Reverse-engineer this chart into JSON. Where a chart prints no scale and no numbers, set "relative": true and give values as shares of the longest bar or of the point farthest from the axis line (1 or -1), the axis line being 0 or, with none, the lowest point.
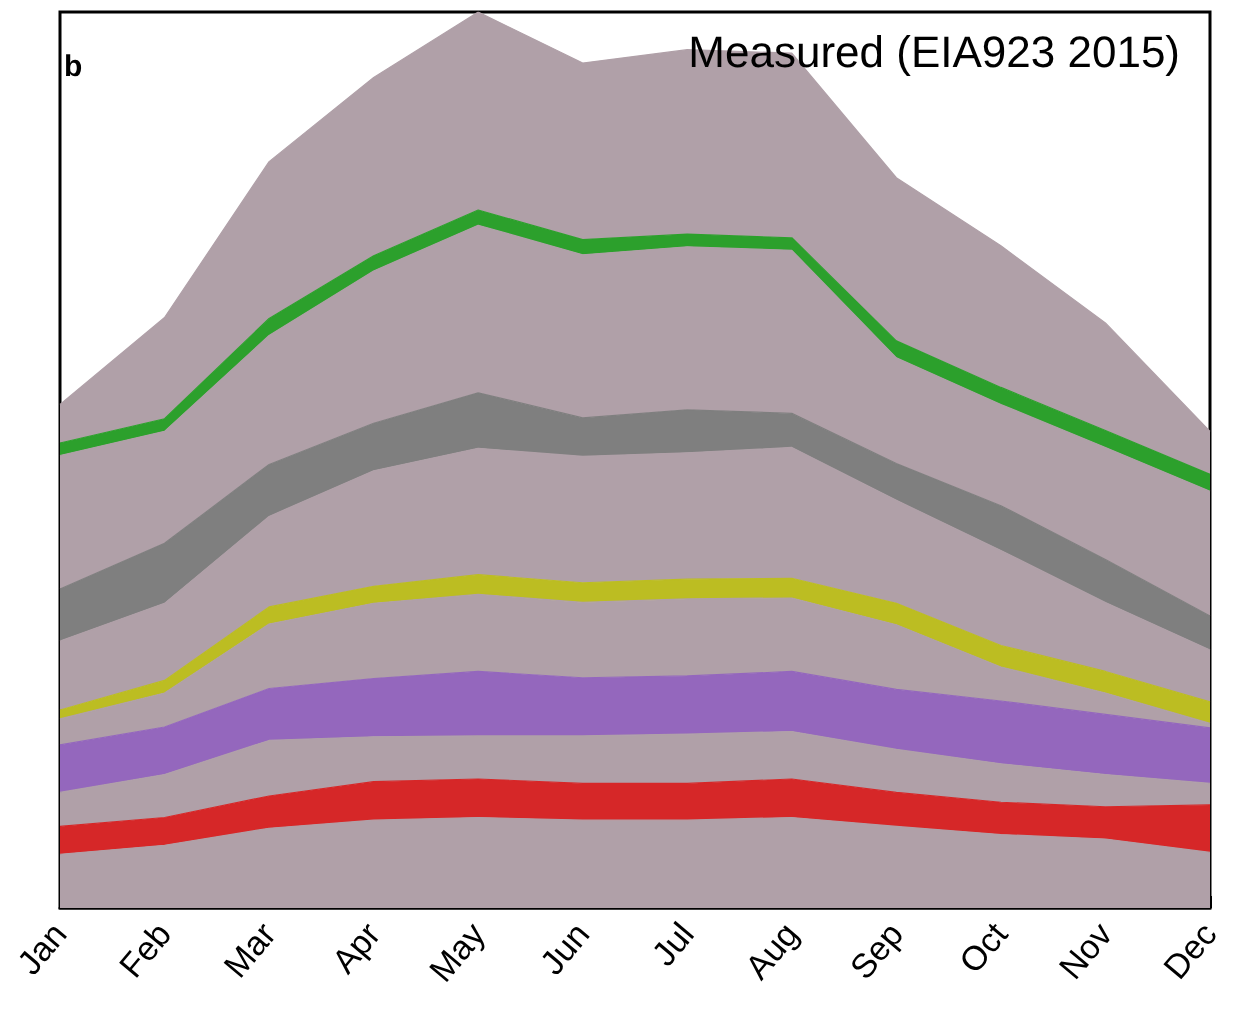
{
  "chart_data": {
    "type": "area",
    "stacked": true,
    "relative": true,
    "title": "Measured (EIA923 2015)",
    "annotations": [
      "b"
    ],
    "categories": [
      "Jan",
      "Feb",
      "Mar",
      "Apr",
      "May",
      "Jun",
      "Jul",
      "Aug",
      "Sep",
      "Oct",
      "Nov",
      "Dec"
    ],
    "series": [
      {
        "color": "#b0a0a8",
        "values": [
          0.06,
          0.07,
          0.089,
          0.098,
          0.101,
          0.098,
          0.098,
          0.101,
          0.091,
          0.082,
          0.077,
          0.062
        ]
      },
      {
        "color": "#d62728",
        "values": [
          0.031,
          0.031,
          0.036,
          0.043,
          0.043,
          0.041,
          0.041,
          0.043,
          0.038,
          0.036,
          0.036,
          0.053
        ]
      },
      {
        "color": "#b0a0a8",
        "values": [
          0.038,
          0.048,
          0.062,
          0.05,
          0.048,
          0.053,
          0.055,
          0.053,
          0.048,
          0.043,
          0.036,
          0.024
        ]
      },
      {
        "color": "#9467bd",
        "values": [
          0.053,
          0.053,
          0.058,
          0.065,
          0.072,
          0.065,
          0.065,
          0.067,
          0.067,
          0.07,
          0.067,
          0.062
        ]
      },
      {
        "color": "#b0a0a8",
        "values": [
          0.029,
          0.038,
          0.072,
          0.084,
          0.086,
          0.084,
          0.086,
          0.082,
          0.072,
          0.038,
          0.024,
          0.005
        ]
      },
      {
        "color": "#bcbd22",
        "values": [
          0.01,
          0.014,
          0.019,
          0.019,
          0.022,
          0.022,
          0.022,
          0.022,
          0.024,
          0.024,
          0.024,
          0.024
        ]
      },
      {
        "color": "#b0a0a8",
        "values": [
          0.077,
          0.086,
          0.101,
          0.129,
          0.141,
          0.141,
          0.141,
          0.146,
          0.115,
          0.106,
          0.077,
          0.058
        ]
      },
      {
        "color": "#7f7f7f",
        "values": [
          0.058,
          0.067,
          0.058,
          0.053,
          0.062,
          0.043,
          0.048,
          0.038,
          0.041,
          0.05,
          0.048,
          0.038
        ]
      },
      {
        "color": "#b0a0a8",
        "values": [
          0.149,
          0.125,
          0.144,
          0.17,
          0.187,
          0.182,
          0.182,
          0.182,
          0.118,
          0.113,
          0.125,
          0.139
        ]
      },
      {
        "color": "#2ca02c",
        "values": [
          0.014,
          0.014,
          0.019,
          0.017,
          0.017,
          0.017,
          0.014,
          0.014,
          0.019,
          0.019,
          0.019,
          0.019
        ]
      },
      {
        "color": "#b0a0a8",
        "values": [
          0.043,
          0.113,
          0.175,
          0.199,
          0.221,
          0.197,
          0.206,
          0.206,
          0.182,
          0.158,
          0.12,
          0.048
        ]
      }
    ]
  }
}
